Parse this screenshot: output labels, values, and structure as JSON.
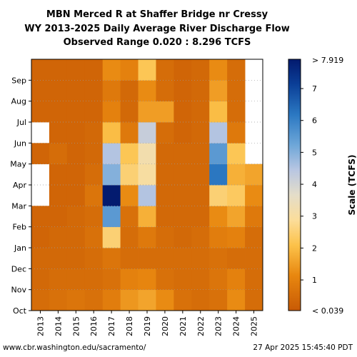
{
  "chart_data": {
    "type": "heatmap",
    "title_lines": [
      "MBN Merced R at Shaffer Bridge nr Cressy",
      "WY 2013-2025 Daily Average River Discharge Flow",
      "Observed Range 0.020 : 8.296 TCFS"
    ],
    "x_categories": [
      "2013",
      "2014",
      "2015",
      "2016",
      "2017",
      "2018",
      "2019",
      "2020",
      "2021",
      "2022",
      "2023",
      "2024",
      "2025"
    ],
    "y_months": [
      "Oct",
      "Nov",
      "Dec",
      "Jan",
      "Feb",
      "Mar",
      "Apr",
      "May",
      "Jun",
      "Jul",
      "Aug",
      "Sep"
    ],
    "colorbar": {
      "label": "Scale (TCFS)",
      "ticks": [
        "1",
        "2",
        "3",
        "4",
        "5",
        "6",
        "7"
      ],
      "max_label": "> 7.919",
      "min_label": "< 0.039",
      "range": [
        0.039,
        7.919
      ]
    },
    "approx_monthly_flow_tcfs": {
      "2013": [
        0.5,
        0.4,
        0.4,
        0.3,
        0.3,
        null,
        null,
        0.3,
        null,
        0.3,
        0.3,
        0.3
      ],
      "2014": [
        0.6,
        0.5,
        0.4,
        0.4,
        0.3,
        0.3,
        0.3,
        0.5,
        0.3,
        0.3,
        0.3,
        0.3
      ],
      "2015": [
        0.7,
        0.5,
        0.4,
        0.4,
        0.4,
        0.3,
        0.3,
        0.3,
        0.3,
        0.3,
        0.3,
        0.3
      ],
      "2016": [
        0.6,
        0.5,
        0.5,
        0.6,
        0.5,
        0.7,
        0.5,
        0.4,
        0.4,
        0.3,
        0.3,
        0.3
      ],
      "2017": [
        0.9,
        0.6,
        0.7,
        2.5,
        5.5,
        7.9,
        5.0,
        4.5,
        2.0,
        1.0,
        0.8,
        1.2
      ],
      "2018": [
        1.4,
        1.0,
        0.5,
        0.5,
        0.6,
        1.2,
        2.5,
        2.2,
        0.8,
        0.4,
        0.4,
        1.0
      ],
      "2019": [
        1.6,
        1.1,
        0.5,
        0.8,
        1.8,
        4.5,
        3.0,
        3.2,
        4.2,
        1.5,
        1.2,
        2.2
      ],
      "2020": [
        1.2,
        0.6,
        0.5,
        0.5,
        0.4,
        0.4,
        0.4,
        0.4,
        0.5,
        1.5,
        0.5,
        0.5
      ],
      "2021": [
        0.6,
        0.5,
        0.5,
        0.4,
        0.4,
        0.4,
        0.4,
        0.4,
        0.3,
        0.3,
        0.3,
        0.3
      ],
      "2022": [
        0.5,
        0.5,
        0.5,
        0.5,
        0.4,
        0.4,
        0.4,
        0.4,
        0.4,
        0.4,
        0.4,
        0.4
      ],
      "2023": [
        0.6,
        0.7,
        0.6,
        0.9,
        1.2,
        2.5,
        6.2,
        5.5,
        4.5,
        2.0,
        1.5,
        1.2
      ],
      "2024": [
        1.2,
        1.0,
        0.5,
        1.0,
        1.6,
        2.3,
        1.8,
        2.2,
        0.8,
        0.5,
        0.5,
        0.5
      ],
      "2025": [
        0.5,
        0.5,
        0.5,
        0.5,
        0.8,
        1.2,
        1.6,
        null,
        null,
        null,
        null,
        null
      ]
    }
  },
  "footer": {
    "left": "www.cbr.washington.edu/sacramento/",
    "right": "27 Apr 2025 15:45:40 PDT"
  }
}
